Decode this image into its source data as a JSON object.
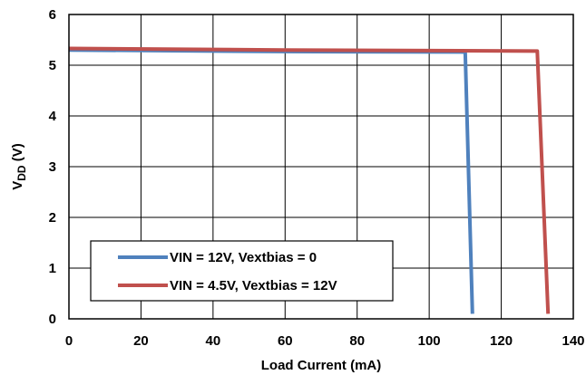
{
  "chart_data": {
    "type": "line",
    "xlabel": "Load Current (mA)",
    "ylabel": {
      "main": "V",
      "sub": "DD",
      "unit": " (V)"
    },
    "xlim": [
      0,
      140
    ],
    "ylim": [
      0,
      6
    ],
    "x_ticks": [
      0,
      20,
      40,
      60,
      80,
      100,
      120,
      140
    ],
    "y_ticks": [
      0,
      1,
      2,
      3,
      4,
      5,
      6
    ],
    "x_tick_labels": [
      "0",
      "20",
      "40",
      "60",
      "80",
      "100",
      "120",
      "140"
    ],
    "y_tick_labels": [
      "0",
      "1",
      "2",
      "3",
      "4",
      "5",
      "6"
    ],
    "grid": true,
    "legend_position": "bottom-left",
    "series": [
      {
        "name": "VIN = 12V, Vextbias = 0",
        "color": "#4f81bd",
        "points": [
          [
            0,
            5.3
          ],
          [
            60,
            5.27
          ],
          [
            110,
            5.26
          ],
          [
            112,
            0.1
          ]
        ]
      },
      {
        "name": "VIN = 4.5V, Vextbias = 12V",
        "color": "#c0504d",
        "points": [
          [
            0,
            5.33
          ],
          [
            60,
            5.3
          ],
          [
            130,
            5.28
          ],
          [
            133,
            0.1
          ]
        ]
      }
    ]
  }
}
